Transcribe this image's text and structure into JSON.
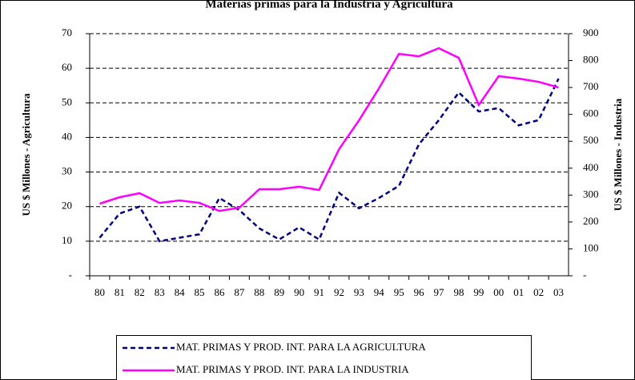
{
  "chart_data": {
    "type": "line",
    "title": "Materias primas para la Industria y Agricultura",
    "ylabel": "US $ Millones - Agricultura",
    "y2label": "US $ Millones - Industria",
    "categories": [
      "80",
      "81",
      "82",
      "83",
      "84",
      "85",
      "86",
      "87",
      "88",
      "89",
      "90",
      "91",
      "92",
      "93",
      "94",
      "95",
      "96",
      "97",
      "98",
      "99",
      "00",
      "01",
      "02",
      "03"
    ],
    "series": [
      {
        "name": "MAT. PRIMAS Y PROD. INT. PARA LA AGRICULTURA",
        "color": "#000080",
        "dashed": true,
        "values": [
          11,
          18,
          20,
          10,
          11,
          12,
          22.5,
          19,
          13.7,
          10.5,
          14,
          10.5,
          24,
          19.5,
          22.5,
          26,
          38,
          45,
          53,
          47.5,
          48.5,
          43.5,
          45,
          57
        ]
      },
      {
        "name": "MAT. PRIMAS Y PROD. INT. PARA LA INDUSTRIA",
        "color": "#ff00ff",
        "axis": "y2",
        "values": [
          268,
          292,
          307,
          271,
          280,
          271,
          241,
          253,
          322,
          322,
          331,
          319,
          471,
          578,
          697,
          825,
          816,
          846,
          810,
          635,
          742,
          733,
          721,
          700
        ]
      }
    ],
    "ylim": [
      0,
      70
    ],
    "yticks": [
      {
        "value": 0,
        "label": "-"
      },
      10,
      20,
      30,
      40,
      50,
      60,
      70
    ],
    "y2lim": [
      0,
      900
    ],
    "y2ticks": [
      {
        "value": 0,
        "label": "-"
      },
      100,
      200,
      300,
      400,
      500,
      600,
      700,
      800,
      900
    ],
    "grid": true,
    "legend": "bottom"
  }
}
